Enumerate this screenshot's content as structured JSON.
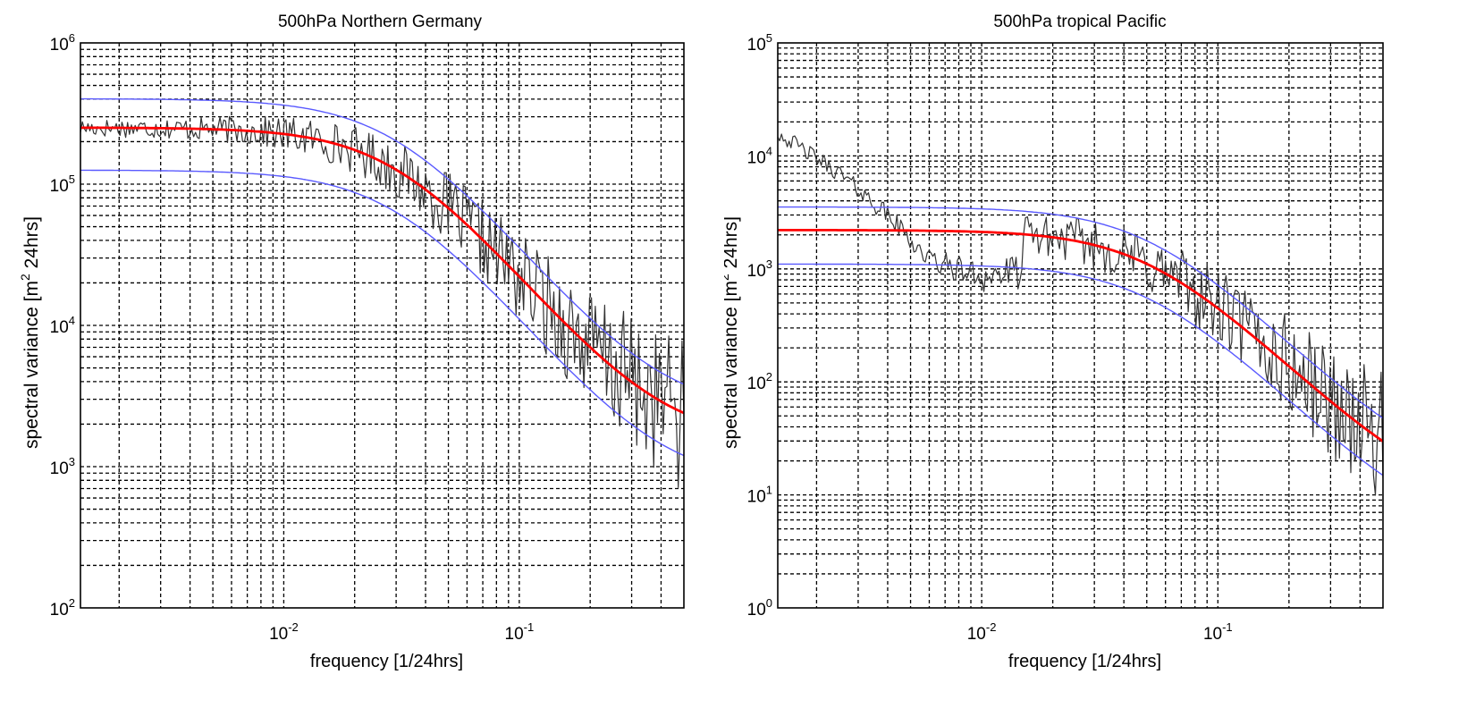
{
  "chart_data": [
    {
      "type": "line",
      "title": "500hPa Northern Germany",
      "xlabel": "frequency [1/24hrs]",
      "ylabel_main": "spectral variance [m",
      "ylabel_sup": "2",
      "ylabel_tail": " 24hrs]",
      "xscale": "log",
      "yscale": "log",
      "xlim": [
        0.00137,
        0.5
      ],
      "ylim": [
        100,
        1000000
      ],
      "grid": true,
      "xticks": [
        {
          "value": 0.01,
          "base": "10",
          "exp": "-2"
        },
        {
          "value": 0.1,
          "base": "10",
          "exp": "-1"
        }
      ],
      "yticks": [
        {
          "value": 100,
          "base": "10",
          "exp": "2"
        },
        {
          "value": 1000,
          "base": "10",
          "exp": "3"
        },
        {
          "value": 10000,
          "base": "10",
          "exp": "4"
        },
        {
          "value": 100000,
          "base": "10",
          "exp": "5"
        },
        {
          "value": 1000000,
          "base": "10",
          "exp": "6"
        }
      ],
      "fit": {
        "A": 250000,
        "B": 1500,
        "f0": 0.03,
        "n": 2
      },
      "band": {
        "upper_factor": 1.6,
        "lower_factor": 0.5
      },
      "raw_seed": 17,
      "raw_amp": 0.55,
      "series": [
        {
          "role": "raw",
          "color": "#333333",
          "width": 1.2
        },
        {
          "role": "upper",
          "color": "#5a5aff",
          "width": 1.4
        },
        {
          "role": "lower",
          "color": "#5a5aff",
          "width": 1.4
        },
        {
          "role": "fit",
          "color": "#ff0000",
          "width": 2.8
        }
      ]
    },
    {
      "type": "line",
      "title": "500hPa tropical Pacific",
      "xlabel": "frequency [1/24hrs]",
      "ylabel_main": "spectral variance [m",
      "ylabel_sup": "2",
      "ylabel_tail": " 24hrs]",
      "xscale": "log",
      "yscale": "log",
      "xlim": [
        0.00137,
        0.5
      ],
      "ylim": [
        1,
        100000
      ],
      "grid": true,
      "xticks": [
        {
          "value": 0.01,
          "base": "10",
          "exp": "-2"
        },
        {
          "value": 0.1,
          "base": "10",
          "exp": "-1"
        }
      ],
      "yticks": [
        {
          "value": 1,
          "base": "10",
          "exp": "0"
        },
        {
          "value": 10,
          "base": "10",
          "exp": "1"
        },
        {
          "value": 100,
          "base": "10",
          "exp": "2"
        },
        {
          "value": 1000,
          "base": "10",
          "exp": "3"
        },
        {
          "value": 10000,
          "base": "10",
          "exp": "4"
        },
        {
          "value": 100000,
          "base": "10",
          "exp": "5"
        }
      ],
      "fit": {
        "A": 2200,
        "B": 8,
        "f0": 0.05,
        "n": 2
      },
      "band": {
        "upper_factor": 1.6,
        "lower_factor": 0.5
      },
      "raw_seed": 42,
      "raw_amp": 0.6,
      "raw_lowfreq": {
        "f": [
          0.00137,
          0.0025,
          0.004,
          0.006,
          0.01,
          0.015
        ],
        "y": [
          16000,
          7000,
          3000,
          1200,
          850,
          950
        ]
      },
      "series": [
        {
          "role": "raw",
          "color": "#333333",
          "width": 1.2
        },
        {
          "role": "upper",
          "color": "#5a5aff",
          "width": 1.4
        },
        {
          "role": "lower",
          "color": "#5a5aff",
          "width": 1.4
        },
        {
          "role": "fit",
          "color": "#ff0000",
          "width": 2.8
        }
      ]
    }
  ]
}
